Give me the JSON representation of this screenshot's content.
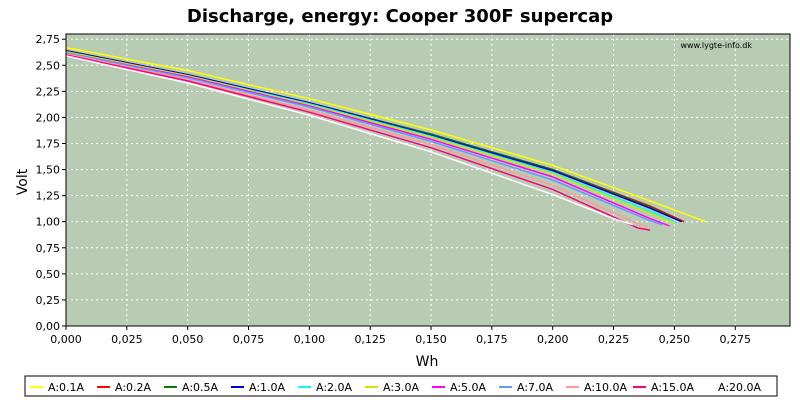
{
  "chart_data": {
    "type": "line",
    "title": "Discharge, energy: Cooper 300F supercap",
    "xlabel": "Wh",
    "ylabel": "Volt",
    "watermark": "www.lygte-info.dk",
    "xlim": [
      0,
      0.2975
    ],
    "ylim": [
      0,
      2.8
    ],
    "x_ticks": [
      "0,000",
      "0,025",
      "0,050",
      "0,075",
      "0,100",
      "0,125",
      "0,150",
      "0,175",
      "0,200",
      "0,225",
      "0,250",
      "0,275"
    ],
    "y_ticks": [
      "0,00",
      "0,25",
      "0,50",
      "0,75",
      "1,00",
      "1,25",
      "1,50",
      "1,75",
      "2,00",
      "2,25",
      "2,50",
      "2,75"
    ],
    "grid": true,
    "legend_position": "bottom",
    "background_color": "#b8ccb4",
    "series": [
      {
        "name": "A:0.1A",
        "color": "#ffff00",
        "points": [
          [
            0,
            2.67
          ],
          [
            0.05,
            2.45
          ],
          [
            0.1,
            2.18
          ],
          [
            0.15,
            1.88
          ],
          [
            0.2,
            1.54
          ],
          [
            0.24,
            1.2
          ],
          [
            0.263,
            1.0
          ]
        ]
      },
      {
        "name": "A:0.2A",
        "color": "#ff0000",
        "points": [
          [
            0,
            2.64
          ],
          [
            0.05,
            2.41
          ],
          [
            0.1,
            2.14
          ],
          [
            0.15,
            1.84
          ],
          [
            0.2,
            1.5
          ],
          [
            0.24,
            1.15
          ],
          [
            0.254,
            1.0
          ]
        ]
      },
      {
        "name": "A:0.5A",
        "color": "#008000",
        "points": [
          [
            0,
            2.64
          ],
          [
            0.05,
            2.41
          ],
          [
            0.1,
            2.14
          ],
          [
            0.15,
            1.84
          ],
          [
            0.2,
            1.5
          ],
          [
            0.24,
            1.14
          ],
          [
            0.253,
            1.0
          ]
        ]
      },
      {
        "name": "A:1.0A",
        "color": "#0000cc",
        "points": [
          [
            0,
            2.64
          ],
          [
            0.05,
            2.41
          ],
          [
            0.1,
            2.14
          ],
          [
            0.15,
            1.83
          ],
          [
            0.2,
            1.49
          ],
          [
            0.24,
            1.13
          ],
          [
            0.253,
            1.0
          ]
        ]
      },
      {
        "name": "A:2.0A",
        "color": "#00ffff",
        "points": [
          [
            0,
            2.63
          ],
          [
            0.05,
            2.4
          ],
          [
            0.1,
            2.13
          ],
          [
            0.15,
            1.82
          ],
          [
            0.2,
            1.47
          ],
          [
            0.24,
            1.1
          ],
          [
            0.251,
            0.99
          ]
        ]
      },
      {
        "name": "A:3.0A",
        "color": "#dddd00",
        "points": [
          [
            0,
            2.63
          ],
          [
            0.05,
            2.4
          ],
          [
            0.1,
            2.12
          ],
          [
            0.15,
            1.81
          ],
          [
            0.2,
            1.46
          ],
          [
            0.24,
            1.08
          ],
          [
            0.25,
            0.99
          ]
        ]
      },
      {
        "name": "A:5.0A",
        "color": "#ff00ff",
        "points": [
          [
            0,
            2.62
          ],
          [
            0.05,
            2.39
          ],
          [
            0.1,
            2.11
          ],
          [
            0.15,
            1.79
          ],
          [
            0.2,
            1.43
          ],
          [
            0.24,
            1.03
          ],
          [
            0.248,
            0.96
          ]
        ]
      },
      {
        "name": "A:7.0A",
        "color": "#6699ff",
        "points": [
          [
            0,
            2.62
          ],
          [
            0.05,
            2.38
          ],
          [
            0.1,
            2.1
          ],
          [
            0.15,
            1.77
          ],
          [
            0.2,
            1.4
          ],
          [
            0.24,
            1.01
          ],
          [
            0.245,
            0.97
          ]
        ]
      },
      {
        "name": "A:10.0A",
        "color": "#ff9999",
        "points": [
          [
            0,
            2.61
          ],
          [
            0.05,
            2.36
          ],
          [
            0.1,
            2.07
          ],
          [
            0.15,
            1.74
          ],
          [
            0.2,
            1.35
          ],
          [
            0.235,
            0.98
          ],
          [
            0.239,
            0.95
          ]
        ]
      },
      {
        "name": "A:15.0A",
        "color": "#ff0080",
        "points": [
          [
            0,
            2.6
          ],
          [
            0.05,
            2.35
          ],
          [
            0.1,
            2.05
          ],
          [
            0.15,
            1.71
          ],
          [
            0.2,
            1.31
          ],
          [
            0.235,
            0.94
          ],
          [
            0.24,
            0.92
          ]
        ]
      },
      {
        "name": "A:20.0A",
        "color": "#ffffff",
        "points": [
          [
            0,
            2.59
          ],
          [
            0.05,
            2.33
          ],
          [
            0.1,
            2.02
          ],
          [
            0.15,
            1.67
          ],
          [
            0.2,
            1.26
          ],
          [
            0.225,
            1.03
          ],
          [
            0.233,
            0.97
          ]
        ]
      }
    ]
  }
}
